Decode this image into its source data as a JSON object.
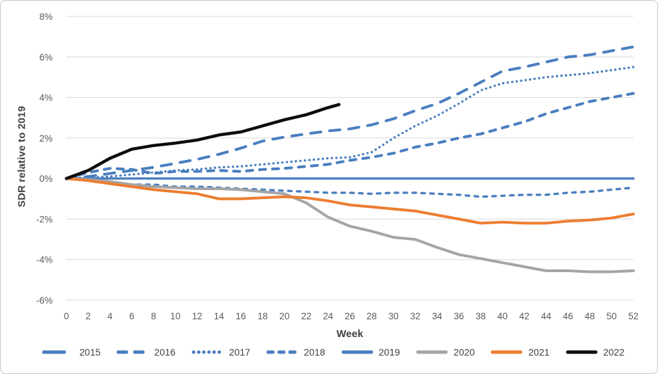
{
  "chart_data": {
    "type": "line",
    "title": "",
    "xlabel": "Week",
    "ylabel": "SDR relative to 2019",
    "xlim": [
      0,
      52
    ],
    "ylim": [
      -6,
      8
    ],
    "grid": "horizontal-only",
    "legend_position": "bottom",
    "x_tick_step": 2,
    "x_ticks": [
      0,
      2,
      4,
      6,
      8,
      10,
      12,
      14,
      16,
      18,
      20,
      22,
      24,
      26,
      28,
      30,
      32,
      34,
      36,
      38,
      40,
      42,
      44,
      46,
      48,
      50,
      52
    ],
    "y_ticks": [
      {
        "value": 8,
        "label": "8%"
      },
      {
        "value": 6,
        "label": "6%"
      },
      {
        "value": 4,
        "label": "4%"
      },
      {
        "value": 2,
        "label": "2%"
      },
      {
        "value": 0,
        "label": "0%"
      },
      {
        "value": -2,
        "label": "-2%"
      },
      {
        "value": -4,
        "label": "-4%"
      },
      {
        "value": -6,
        "label": "-6%"
      }
    ],
    "weeks": [
      0,
      2,
      4,
      6,
      8,
      10,
      12,
      14,
      16,
      18,
      20,
      22,
      24,
      26,
      28,
      30,
      32,
      34,
      36,
      38,
      40,
      42,
      44,
      46,
      48,
      50,
      52
    ],
    "series": [
      {
        "name": "2015",
        "color": "#4a7ebf",
        "style": "long-dash",
        "values": [
          0,
          0.1,
          0.25,
          0.4,
          0.55,
          0.75,
          0.95,
          1.2,
          1.5,
          1.85,
          2.05,
          2.2,
          2.35,
          2.45,
          2.65,
          2.95,
          3.35,
          3.7,
          4.2,
          4.75,
          5.3,
          5.5,
          5.75,
          6.0,
          6.1,
          6.3,
          6.5
        ]
      },
      {
        "name": "2016",
        "color": "#4a7ebf",
        "style": "dash",
        "values": [
          0,
          0.3,
          0.5,
          0.45,
          0.25,
          0.35,
          0.35,
          0.4,
          0.35,
          0.45,
          0.5,
          0.6,
          0.7,
          0.9,
          1.05,
          1.25,
          1.55,
          1.75,
          2.0,
          2.2,
          2.5,
          2.8,
          3.2,
          3.5,
          3.8,
          4.0,
          4.2
        ]
      },
      {
        "name": "2017",
        "color": "#4a7ebf",
        "style": "dot",
        "values": [
          0,
          0.05,
          0.1,
          0.2,
          0.3,
          0.4,
          0.45,
          0.55,
          0.6,
          0.7,
          0.8,
          0.9,
          1.0,
          1.05,
          1.3,
          2.0,
          2.6,
          3.1,
          3.7,
          4.35,
          4.7,
          4.85,
          5.0,
          5.1,
          5.2,
          5.35,
          5.5
        ]
      },
      {
        "name": "2018",
        "color": "#4a7ebf",
        "style": "short-dash",
        "values": [
          0,
          -0.1,
          -0.25,
          -0.3,
          -0.3,
          -0.4,
          -0.4,
          -0.45,
          -0.5,
          -0.55,
          -0.6,
          -0.65,
          -0.7,
          -0.7,
          -0.75,
          -0.7,
          -0.7,
          -0.75,
          -0.8,
          -0.9,
          -0.85,
          -0.8,
          -0.8,
          -0.7,
          -0.65,
          -0.55,
          -0.45
        ]
      },
      {
        "name": "2019",
        "color": "#4a7ebf",
        "style": "solid",
        "values": [
          0,
          0,
          0,
          0,
          0,
          0,
          0,
          0,
          0,
          0,
          0,
          0,
          0,
          0,
          0,
          0,
          0,
          0,
          0,
          0,
          0,
          0,
          0,
          0,
          0,
          0,
          0
        ]
      },
      {
        "name": "2020",
        "color": "#a5a5a5",
        "style": "solid",
        "values": [
          0,
          -0.05,
          -0.15,
          -0.3,
          -0.4,
          -0.45,
          -0.5,
          -0.5,
          -0.55,
          -0.65,
          -0.75,
          -1.2,
          -1.9,
          -2.35,
          -2.6,
          -2.9,
          -3.0,
          -3.4,
          -3.75,
          -3.95,
          -4.15,
          -4.35,
          -4.55,
          -4.55,
          -4.6,
          -4.6,
          -4.55
        ]
      },
      {
        "name": "2021",
        "color": "#ed7d31",
        "style": "solid",
        "values": [
          0,
          -0.1,
          -0.25,
          -0.4,
          -0.55,
          -0.65,
          -0.75,
          -1.0,
          -1.0,
          -0.95,
          -0.9,
          -0.95,
          -1.1,
          -1.3,
          -1.4,
          -1.5,
          -1.6,
          -1.8,
          -2.0,
          -2.2,
          -2.15,
          -2.2,
          -2.2,
          -2.1,
          -2.05,
          -1.95,
          -1.75
        ]
      },
      {
        "name": "2022",
        "color": "#0d0d0d",
        "style": "solid",
        "x": [
          0,
          2,
          4,
          6,
          8,
          10,
          12,
          14,
          16,
          18,
          20,
          22,
          24,
          25
        ],
        "values": [
          0,
          0.4,
          1.0,
          1.45,
          1.63,
          1.75,
          1.9,
          2.15,
          2.3,
          2.6,
          2.9,
          3.15,
          3.5,
          3.65
        ]
      }
    ],
    "legend_labels": [
      "2015",
      "2016",
      "2017",
      "2018",
      "2019",
      "2020",
      "2021",
      "2022"
    ]
  },
  "colors": {
    "blue_series": "#4a7ebf",
    "gray_series": "#a5a5a5",
    "orange_series": "#ed7d31",
    "black_series": "#0d0d0d",
    "gridline": "#d9d9d9",
    "tick_label": "#595959",
    "axis_title": "#404040",
    "frame_border": "#c6c6c6",
    "background": "#ffffff"
  }
}
